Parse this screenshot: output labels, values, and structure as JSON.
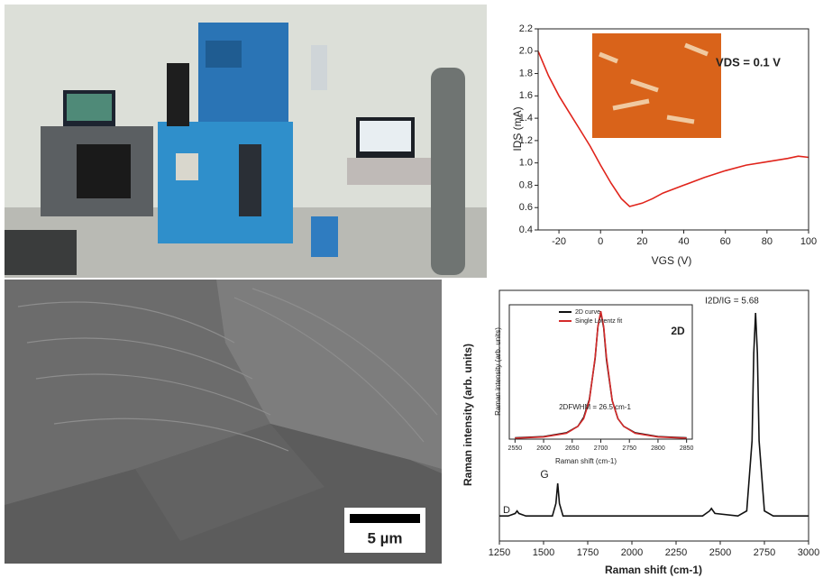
{
  "figure": {
    "scale_bar": "5 µm"
  },
  "chart_data": [
    {
      "type": "line",
      "x_label": "VGS (V)",
      "y_label": "IDS (mA)",
      "annotations": [
        "VDS = 0.1 V"
      ],
      "x": [
        -30,
        -25,
        -20,
        -15,
        -10,
        -5,
        0,
        5,
        10,
        14,
        20,
        25,
        30,
        40,
        50,
        60,
        70,
        80,
        90,
        95,
        100
      ],
      "values": [
        2.0,
        1.78,
        1.6,
        1.45,
        1.3,
        1.15,
        0.98,
        0.82,
        0.68,
        0.61,
        0.64,
        0.68,
        0.73,
        0.8,
        0.87,
        0.93,
        0.98,
        1.01,
        1.04,
        1.06,
        1.05
      ],
      "color": "#e0241b",
      "xlim": [
        -30,
        100
      ],
      "xticks": [
        -20,
        0,
        20,
        40,
        60,
        80,
        100
      ],
      "ylim": [
        0.4,
        2.2
      ],
      "yticks": [
        0.4,
        0.6,
        0.8,
        {
          "value": 1,
          "label": "1.0"
        },
        1.2,
        1.4,
        1.6,
        1.8,
        {
          "value": 2,
          "label": "2.0"
        },
        2.2
      ]
    },
    {
      "type": "line",
      "x_label": "Raman shift (cm-1)",
      "y_label": "Raman intensity (arb. units)",
      "annotations": [
        "D",
        "G",
        "2D",
        "I2D/IG = 5.68"
      ],
      "x": [
        1250,
        1300,
        1340,
        1350,
        1360,
        1400,
        1550,
        1570,
        1580,
        1590,
        1610,
        2400,
        2440,
        2450,
        2470,
        2600,
        2650,
        2680,
        2690,
        2700,
        2710,
        2720,
        2750,
        2800,
        3000
      ],
      "values": [
        10,
        10,
        11,
        12,
        11,
        10,
        10,
        15,
        23,
        15,
        10,
        10,
        12,
        13,
        11,
        10,
        12,
        40,
        75,
        91,
        75,
        40,
        12,
        10,
        10
      ],
      "color": "#111111",
      "xlim": [
        1250,
        3000
      ],
      "xticks": [
        1250,
        1500,
        1750,
        2000,
        2250,
        2500,
        2750,
        3000
      ],
      "ylim": [
        0,
        100
      ]
    },
    {
      "type": "line",
      "x_label": "Raman shift (cm-1)",
      "y_label": "Raman intensity (arb. units)",
      "annotations": [
        "2DFWHM = 26.5 cm-1"
      ],
      "x": [
        2550,
        2600,
        2640,
        2660,
        2670,
        2680,
        2690,
        2695,
        2700,
        2705,
        2710,
        2720,
        2730,
        2740,
        2760,
        2800,
        2850
      ],
      "series": [
        {
          "name": "2D curve",
          "color": "#111111",
          "values": [
            1,
            2,
            5,
            10,
            17,
            31,
            63,
            88,
            99,
            87,
            62,
            30,
            16,
            10,
            5,
            2,
            1
          ]
        },
        {
          "name": "Single Lorentz fit",
          "color": "#d42a2a",
          "values": [
            0.8,
            1.7,
            4.6,
            10,
            16,
            30,
            64,
            88,
            100,
            88,
            64,
            30,
            16,
            10,
            4.6,
            1.7,
            0.8
          ]
        }
      ],
      "xlim": [
        2540,
        2860
      ],
      "xticks": [
        2550,
        2600,
        2650,
        2700,
        2750,
        2800,
        2850
      ],
      "ylim": [
        0,
        105
      ]
    }
  ]
}
